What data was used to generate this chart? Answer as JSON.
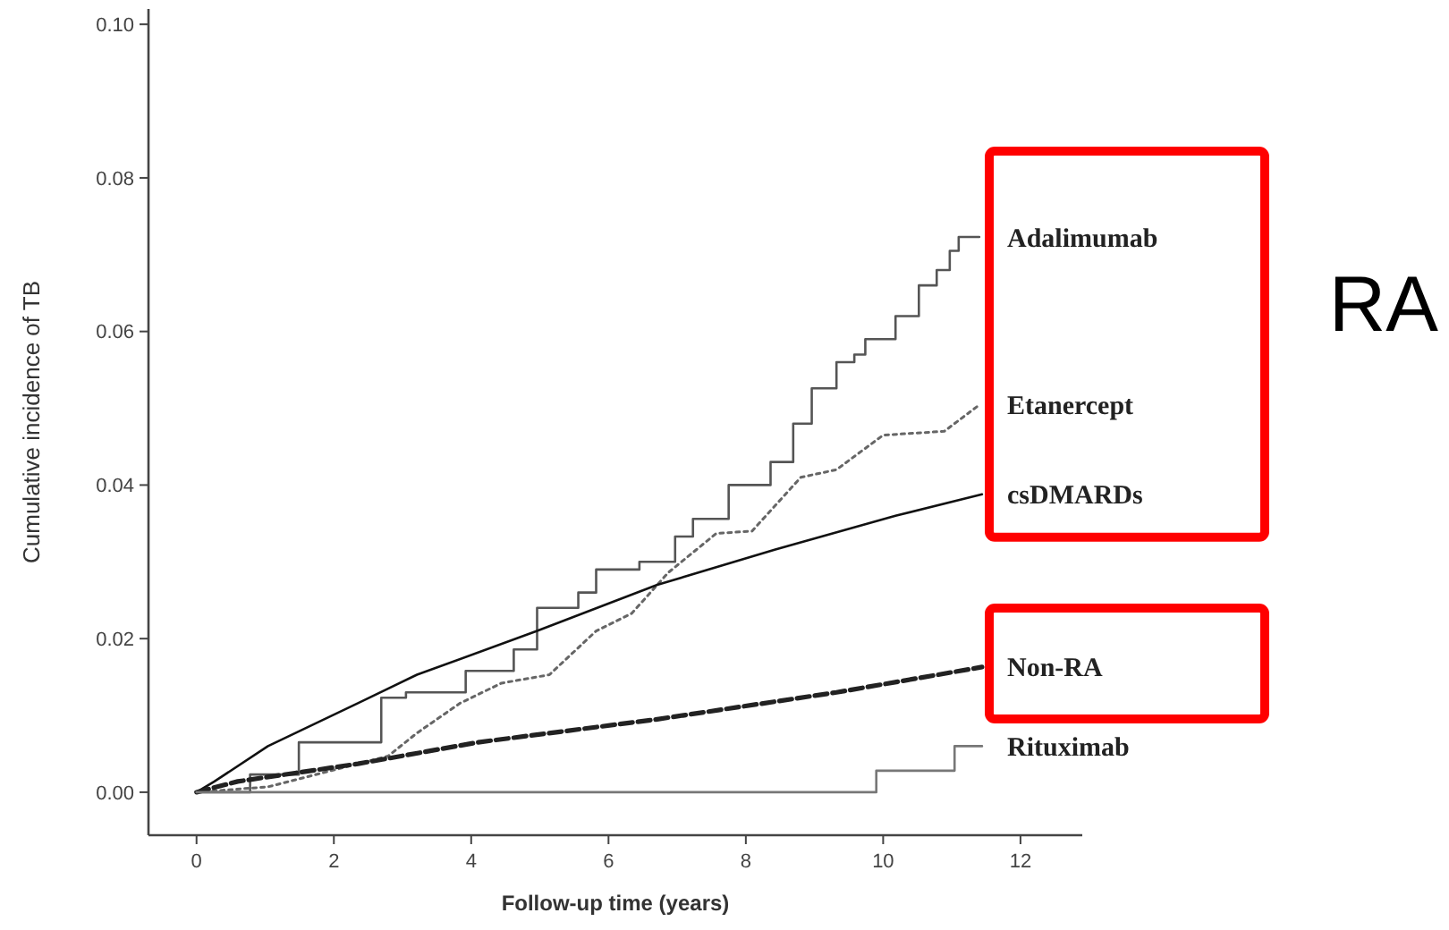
{
  "chart_data": {
    "type": "line",
    "xlabel": "Follow-up time (years)",
    "ylabel": "Cumulative incidence of TB",
    "xlim": [
      -0.7,
      12.9
    ],
    "ylim": [
      -0.0056,
      0.102
    ],
    "xticks": [
      0,
      2,
      4,
      6,
      8,
      10,
      12
    ],
    "yticks": [
      {
        "value": 0,
        "label": "0.00"
      },
      {
        "value": 0.02,
        "label": "0.02"
      },
      {
        "value": 0.04,
        "label": "0.04"
      },
      {
        "value": 0.06,
        "label": "0.06"
      },
      {
        "value": 0.08,
        "label": "0.08"
      },
      {
        "value": 0.1,
        "label": "0.10"
      }
    ],
    "grid": false,
    "legend": false,
    "annotations": [
      "RA"
    ],
    "series": [
      {
        "name": "Adalimumab",
        "type": "step",
        "color": "#555555",
        "line_style": "solid",
        "x": [
          0,
          0.78,
          1.49,
          2.69,
          3.05,
          3.92,
          4.62,
          4.96,
          5.56,
          5.82,
          6.45,
          6.97,
          7.23,
          7.75,
          8.36,
          8.69,
          8.96,
          9.32,
          9.58,
          9.74,
          10.18,
          10.52,
          10.78,
          10.97,
          11.1,
          11.4
        ],
        "values": [
          0,
          0.0023,
          0.0065,
          0.0123,
          0.013,
          0.0158,
          0.0186,
          0.024,
          0.026,
          0.029,
          0.03,
          0.0333,
          0.0356,
          0.04,
          0.043,
          0.048,
          0.0526,
          0.056,
          0.057,
          0.059,
          0.062,
          0.066,
          0.068,
          0.0705,
          0.0723,
          0.0723
        ]
      },
      {
        "name": "Etanercept",
        "type": "line",
        "color": "#666666",
        "line_style": "dotted",
        "x": [
          0,
          1.04,
          2.79,
          3.21,
          3.84,
          4.44,
          5.14,
          5.82,
          6.34,
          6.87,
          7.57,
          8.09,
          8.8,
          9.32,
          10.0,
          10.89,
          11.41
        ],
        "values": [
          0,
          0.0007,
          0.0047,
          0.0077,
          0.0116,
          0.0142,
          0.0153,
          0.021,
          0.0233,
          0.0286,
          0.0337,
          0.034,
          0.041,
          0.042,
          0.0465,
          0.047,
          0.0505
        ]
      },
      {
        "name": "csDMARDs",
        "type": "line",
        "color": "#111111",
        "line_style": "solid",
        "x": [
          0,
          0.26,
          1.04,
          2.35,
          3.21,
          4.96,
          6.71,
          8.43,
          10.18,
          11.44
        ],
        "values": [
          0,
          0.0014,
          0.006,
          0.0116,
          0.0153,
          0.021,
          0.027,
          0.0316,
          0.036,
          0.0388
        ]
      },
      {
        "name": "Non-RA",
        "type": "line",
        "color": "#222222",
        "line_style": "dashed",
        "x": [
          0,
          0.6,
          2.35,
          4.1,
          6.71,
          9.32,
          11.44
        ],
        "values": [
          0,
          0.0014,
          0.0037,
          0.0065,
          0.0095,
          0.013,
          0.0163
        ]
      },
      {
        "name": "Rituximab",
        "type": "step",
        "color": "#777777",
        "line_style": "solid",
        "x": [
          0,
          9.9,
          11.04,
          11.44
        ],
        "values": [
          0,
          0.0028,
          0.006,
          0.006
        ]
      }
    ]
  }
}
